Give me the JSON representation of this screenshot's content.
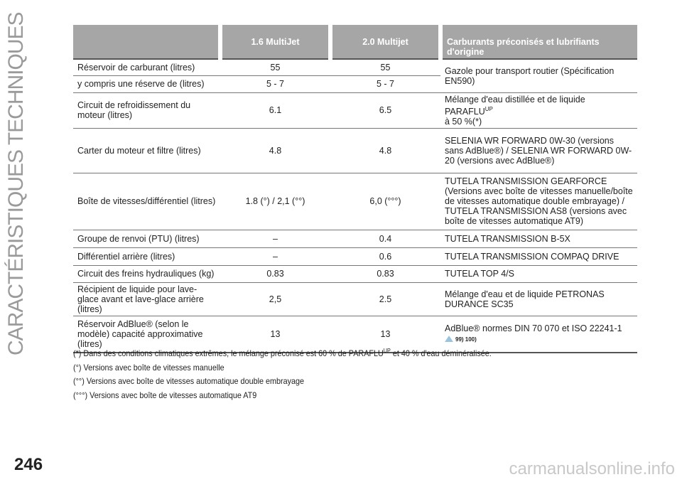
{
  "sidebar_title": "CARACTÉRISTIQUES TECHNIQUES",
  "page_number": "246",
  "watermark": "carmanualsonline.info",
  "table": {
    "headers": [
      "",
      "1.6 MultiJet",
      "2.0 Multijet",
      "Carburants préconisés et lubrifiants d'origine"
    ],
    "rows": [
      {
        "label": "Réservoir de carburant (litres)",
        "v1": "55",
        "v2": "55",
        "fluid": "Gazole pour transport routier (Spécification EN590)"
      },
      {
        "label": "y compris une réserve de (litres)",
        "v1": "5 - 7",
        "v2": "5 - 7"
      },
      {
        "label": "Circuit de refroidissement du moteur (litres)",
        "v1": "6.1",
        "v2": "6.5",
        "fluid": "Mélange d'eau distillée et de liquide PARAFLU",
        "fluid_sup": "UP",
        "fluid_end": "à 50 %(*)"
      },
      {
        "label": "Carter du moteur et filtre (litres)",
        "v1": "4.8",
        "v2": "4.8",
        "fluid": "SELENIA WR FORWARD 0W-30 (versions sans AdBlue®) / SELENIA WR FORWARD 0W-20 (versions avec AdBlue®)"
      },
      {
        "label": "Boîte de vitesses/différentiel (litres)",
        "v1": "1.8 (°) / 2,1 (°°)",
        "v2": "6,0 (°°°)",
        "fluid": "TUTELA TRANSMISSION GEARFORCE (Versions avec boîte de vitesses manuelle/boîte de vitesses automatique double embrayage) / TUTELA TRANSMISSION AS8 (versions avec boîte de vitesses automatique AT9)"
      },
      {
        "label": "Groupe de renvoi (PTU) (litres)",
        "v1": "–",
        "v2": "0.4",
        "fluid": "TUTELA TRANSMISSION B-5X"
      },
      {
        "label": "Différentiel arrière (litres)",
        "v1": "–",
        "v2": "0.6",
        "fluid": "TUTELA TRANSMISSION COMPAQ DRIVE"
      },
      {
        "label": "Circuit des freins hydrauliques (kg)",
        "v1": "0.83",
        "v2": "0.83",
        "fluid": "TUTELA TOP 4/S"
      },
      {
        "label": "Récipient de liquide pour lave-glace avant et lave-glace arrière (litres)",
        "v1": "2,5",
        "v2": "2.5",
        "fluid": "Mélange d'eau et de liquide PETRONAS DURANCE SC35"
      },
      {
        "label": "Réservoir AdBlue® (selon le modèle) capacité approximative (litres)",
        "v1": "13",
        "v2": "13",
        "fluid": "AdBlue® normes DIN 70 070 et ISO 22241-1",
        "refs": "99) 100)",
        "icon": "warning-icon"
      }
    ]
  },
  "footnotes": {
    "n1_a": "(*) Dans des conditions climatiques extrêmes, le mélange préconisé est 60 % de PARAFLU",
    "n1_sup": "UP",
    "n1_b": " et 40 % d'eau déminéralisée.",
    "n2": "(°) Versions avec boîte de vitesses manuelle",
    "n3": "(°°) Versions avec boîte de vitesses automatique double embrayage",
    "n4": "(°°°) Versions avec boîte de vitesses automatique AT9"
  },
  "colors": {
    "header_bg": "#a6a6a6",
    "sidebar_text": "#9a9a9a"
  }
}
